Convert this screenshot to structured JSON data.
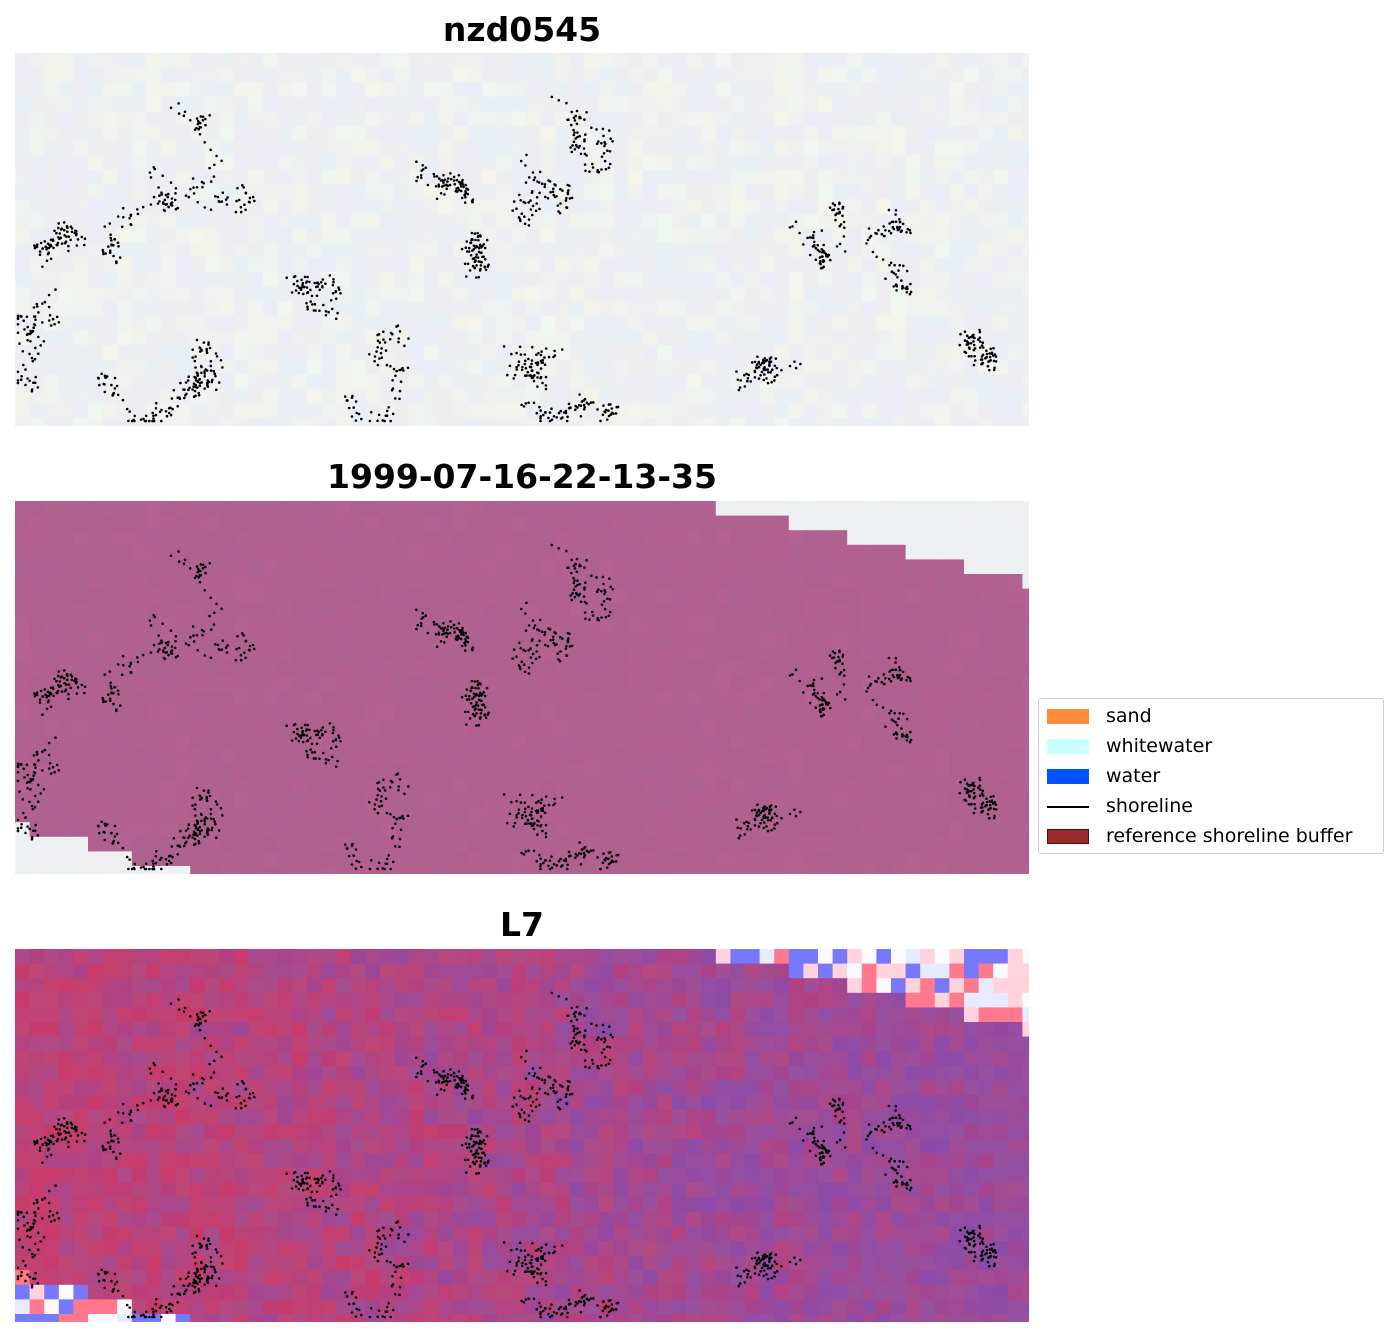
{
  "panels": [
    {
      "title": "nzd0545",
      "style": "base"
    },
    {
      "title": "1999-07-16-22-13-35",
      "style": "mask"
    },
    {
      "title": "L7",
      "style": "tile"
    }
  ],
  "legend": {
    "items": [
      {
        "label": "sand",
        "color": "#ff8c3c",
        "kind": "patch"
      },
      {
        "label": "whitewater",
        "color": "#c8ffff",
        "kind": "patch"
      },
      {
        "label": "water",
        "color": "#0052ff",
        "kind": "patch"
      },
      {
        "label": "shoreline",
        "color": "#000000",
        "kind": "line"
      },
      {
        "label": "reference shoreline buffer",
        "color": "#9a2a2a",
        "kind": "patch-edge"
      }
    ]
  },
  "colors": {
    "base_bg": "#eeeef0",
    "mask_fill": "#b0608f",
    "white_corner": "#f0f0f2",
    "tile_red": "#c83a6a",
    "tile_purple": "#8c4aa8",
    "dots": "#000000"
  }
}
